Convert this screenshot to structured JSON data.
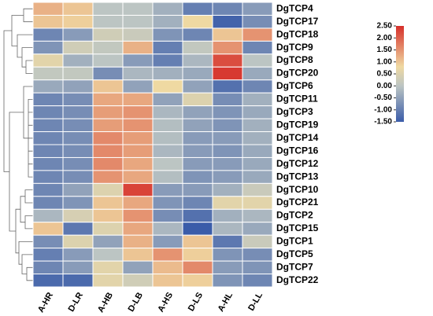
{
  "chart_data": {
    "type": "heatmap",
    "columns": [
      "A-HR",
      "D-LR",
      "A-HB",
      "D-LB",
      "A-HS",
      "D-LS",
      "A-HL",
      "D-LL"
    ],
    "rows": [
      "DgTCP4",
      "DgTCP17",
      "DgTCP18",
      "DgTCP9",
      "DgTCP8",
      "DgTCP20",
      "DgTCP6",
      "DgTCP11",
      "DgTCP3",
      "DgTCP19",
      "DgTCP14",
      "DgTCP16",
      "DgTCP12",
      "DgTCP13",
      "DgTCP10",
      "DgTCP21",
      "DgTCP2",
      "DgTCP15",
      "DgTCP1",
      "DgTCP5",
      "DgTCP7",
      "DgTCP22"
    ],
    "values": [
      [
        1.2,
        1.0,
        0,
        0,
        -0.3,
        -1.0,
        -0.9,
        -0.6
      ],
      [
        1.0,
        0.9,
        0,
        0,
        -0.3,
        0.8,
        -1.4,
        -0.8
      ],
      [
        -0.9,
        -0.6,
        0.3,
        0.2,
        -0.7,
        -0.9,
        1.0,
        1.5
      ],
      [
        -0.7,
        0.3,
        0.1,
        1.2,
        -1.0,
        0.1,
        1.5,
        -0.9
      ],
      [
        0.6,
        -0.3,
        0,
        -0.6,
        -1.0,
        -0.2,
        2.2,
        0
      ],
      [
        0.1,
        0.1,
        -0.8,
        -0.2,
        -0.3,
        -0.4,
        2.4,
        -0.4
      ],
      [
        -0.4,
        -0.5,
        1.0,
        -0.5,
        0.8,
        -0.5,
        -1.2,
        -0.9
      ],
      [
        -0.9,
        -0.8,
        1.3,
        1.3,
        -0.5,
        0.5,
        -0.8,
        -0.3
      ],
      [
        -0.9,
        -0.8,
        1.4,
        1.5,
        -0.2,
        -0.5,
        -0.7,
        -0.4
      ],
      [
        -0.9,
        -0.8,
        1.4,
        1.5,
        -0.1,
        -0.5,
        -0.7,
        -0.3
      ],
      [
        -0.9,
        -0.8,
        1.6,
        1.4,
        -0.1,
        -0.6,
        -0.6,
        -0.3
      ],
      [
        -0.9,
        -0.8,
        1.6,
        1.4,
        -0.2,
        -0.6,
        -0.7,
        -0.4
      ],
      [
        -0.9,
        -0.8,
        1.6,
        1.3,
        0,
        -0.6,
        -0.6,
        -0.4
      ],
      [
        -0.9,
        -0.8,
        1.5,
        1.3,
        -0.1,
        -0.7,
        -0.6,
        -0.4
      ],
      [
        -0.9,
        -0.5,
        0.5,
        2.3,
        -0.6,
        -0.6,
        -0.3,
        0.2
      ],
      [
        -0.9,
        -0.7,
        1.0,
        1.3,
        -0.7,
        -0.9,
        0.6,
        0.6
      ],
      [
        -0.2,
        0.4,
        1.0,
        1.5,
        -0.8,
        -1.2,
        -0.3,
        -0.2
      ],
      [
        1.0,
        -1.1,
        0.5,
        1.3,
        -0.2,
        -1.5,
        -0.2,
        -0.4
      ],
      [
        -0.8,
        0.5,
        -0.5,
        1.2,
        -0.6,
        1.0,
        -1.1,
        0.2
      ],
      [
        -1.0,
        -0.6,
        0,
        1.0,
        1.5,
        0.9,
        -0.7,
        -0.8
      ],
      [
        -0.9,
        -0.6,
        0.6,
        -0.5,
        1.1,
        1.6,
        -0.6,
        -0.7
      ],
      [
        -1.3,
        -1.3,
        0.6,
        0.3,
        1.0,
        0.9,
        -0.7,
        -0.9
      ]
    ],
    "colorscale": [
      {
        "value": -1.5,
        "color": "#3a5ca9"
      },
      {
        "value": 0,
        "color": "#bcc5c3"
      },
      {
        "value": 0.8,
        "color": "#efd9a2"
      },
      {
        "value": 2.5,
        "color": "#d62f2a"
      }
    ],
    "clim": [
      -1.5,
      2.5
    ],
    "cticks": [
      {
        "value": 2.5,
        "label": "2.50"
      },
      {
        "value": 2.0,
        "label": "2.00"
      },
      {
        "value": 1.5,
        "label": "1.50"
      },
      {
        "value": 1.0,
        "label": "1.00"
      },
      {
        "value": 0.5,
        "label": "0.50"
      },
      {
        "value": 0,
        "label": "0.00"
      },
      {
        "value": -0.5,
        "label": "-0.50"
      },
      {
        "value": -1.0,
        "label": "-1.00"
      },
      {
        "value": -1.5,
        "label": "-1.50"
      }
    ]
  }
}
